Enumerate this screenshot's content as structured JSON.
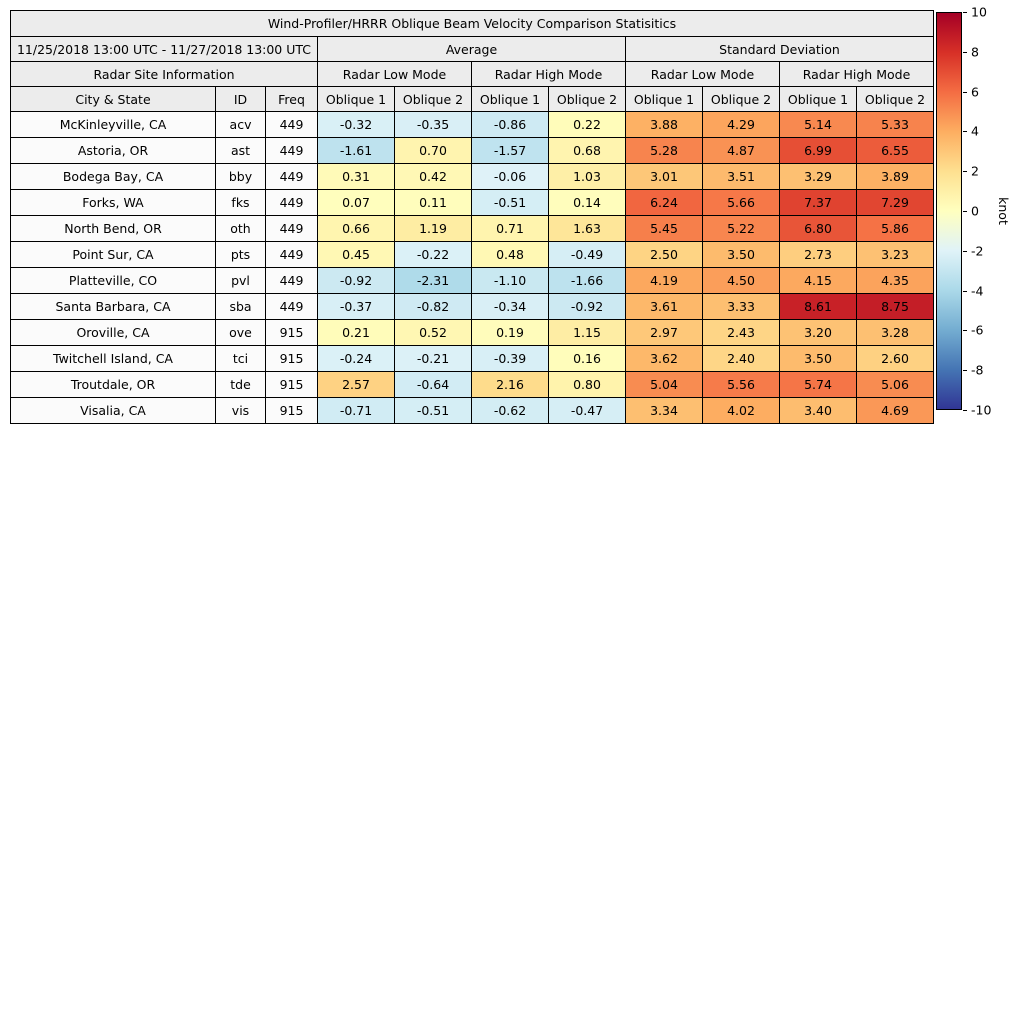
{
  "title": "Wind-Profiler/HRRR Oblique Beam Velocity Comparison Statisitics",
  "header": {
    "date_range": "11/25/2018 13:00 UTC - 11/27/2018 13:00 UTC",
    "group_average": "Average",
    "group_std": "Standard Deviation",
    "site_info": "Radar Site Information",
    "mode_low": "Radar Low Mode",
    "mode_high": "Radar High Mode",
    "col_labels": [
      "City & State",
      "ID",
      "Freq",
      "Oblique 1",
      "Oblique 2",
      "Oblique 1",
      "Oblique 2",
      "Oblique 1",
      "Oblique 2",
      "Oblique 1",
      "Oblique 2"
    ]
  },
  "colormap": {
    "name": "RdYlBu_r",
    "positive_stops": [
      "#ffffbf",
      "#fee090",
      "#fdae61",
      "#f46d43",
      "#d73027",
      "#a50026"
    ],
    "negative_stops": [
      "#e0f3f8",
      "#abd9e9",
      "#74add1",
      "#4575b4",
      "#313695"
    ]
  },
  "colorbar": {
    "label": "knot",
    "min": -10,
    "max": 10,
    "ticks": [
      10,
      8,
      6,
      4,
      2,
      0,
      -2,
      -4,
      -6,
      -8,
      -10
    ],
    "gradient_stops": [
      "#a50026",
      "#d73027",
      "#f46d43",
      "#fdae61",
      "#fee090",
      "#ffffbf",
      "#e0f3f8",
      "#abd9e9",
      "#74add1",
      "#4575b4",
      "#313695"
    ]
  },
  "chart_data": {
    "type": "heatmap",
    "title": "Wind-Profiler/HRRR Oblique Beam Velocity Comparison Statisitics",
    "units": "knot",
    "value_range": [
      -10,
      10
    ],
    "column_groups": [
      "Average / Radar Low Mode",
      "Average / Radar High Mode",
      "Standard Deviation / Radar Low Mode",
      "Standard Deviation / Radar High Mode"
    ],
    "value_columns": [
      "Avg Low Oblique 1",
      "Avg Low Oblique 2",
      "Avg High Oblique 1",
      "Avg High Oblique 2",
      "Std Low Oblique 1",
      "Std Low Oblique 2",
      "Std High Oblique 1",
      "Std High Oblique 2"
    ],
    "rows": [
      {
        "city": "McKinleyville, CA",
        "id": "acv",
        "freq": 449,
        "values": [
          -0.32,
          -0.35,
          -0.86,
          0.22,
          3.88,
          4.29,
          5.14,
          5.33
        ]
      },
      {
        "city": "Astoria, OR",
        "id": "ast",
        "freq": 449,
        "values": [
          -1.61,
          0.7,
          -1.57,
          0.68,
          5.28,
          4.87,
          6.99,
          6.55
        ]
      },
      {
        "city": "Bodega Bay, CA",
        "id": "bby",
        "freq": 449,
        "values": [
          0.31,
          0.42,
          -0.06,
          1.03,
          3.01,
          3.51,
          3.29,
          3.89
        ]
      },
      {
        "city": "Forks, WA",
        "id": "fks",
        "freq": 449,
        "values": [
          0.07,
          0.11,
          -0.51,
          0.14,
          6.24,
          5.66,
          7.37,
          7.29
        ]
      },
      {
        "city": "North Bend, OR",
        "id": "oth",
        "freq": 449,
        "values": [
          0.66,
          1.19,
          0.71,
          1.63,
          5.45,
          5.22,
          6.8,
          5.86
        ]
      },
      {
        "city": "Point Sur, CA",
        "id": "pts",
        "freq": 449,
        "values": [
          0.45,
          -0.22,
          0.48,
          -0.49,
          2.5,
          3.5,
          2.73,
          3.23
        ]
      },
      {
        "city": "Platteville, CO",
        "id": "pvl",
        "freq": 449,
        "values": [
          -0.92,
          -2.31,
          -1.1,
          -1.66,
          4.19,
          4.5,
          4.15,
          4.35
        ]
      },
      {
        "city": "Santa Barbara, CA",
        "id": "sba",
        "freq": 449,
        "values": [
          -0.37,
          -0.82,
          -0.34,
          -0.92,
          3.61,
          3.33,
          8.61,
          8.75
        ]
      },
      {
        "city": "Oroville, CA",
        "id": "ove",
        "freq": 915,
        "values": [
          0.21,
          0.52,
          0.19,
          1.15,
          2.97,
          2.43,
          3.2,
          3.28
        ]
      },
      {
        "city": "Twitchell Island, CA",
        "id": "tci",
        "freq": 915,
        "values": [
          -0.24,
          -0.21,
          -0.39,
          0.16,
          3.62,
          2.4,
          3.5,
          2.6
        ]
      },
      {
        "city": "Troutdale, OR",
        "id": "tde",
        "freq": 915,
        "values": [
          2.57,
          -0.64,
          2.16,
          0.8,
          5.04,
          5.56,
          5.74,
          5.06
        ]
      },
      {
        "city": "Visalia, CA",
        "id": "vis",
        "freq": 915,
        "values": [
          -0.71,
          -0.51,
          -0.62,
          -0.47,
          3.34,
          4.02,
          3.4,
          4.69
        ]
      }
    ]
  }
}
